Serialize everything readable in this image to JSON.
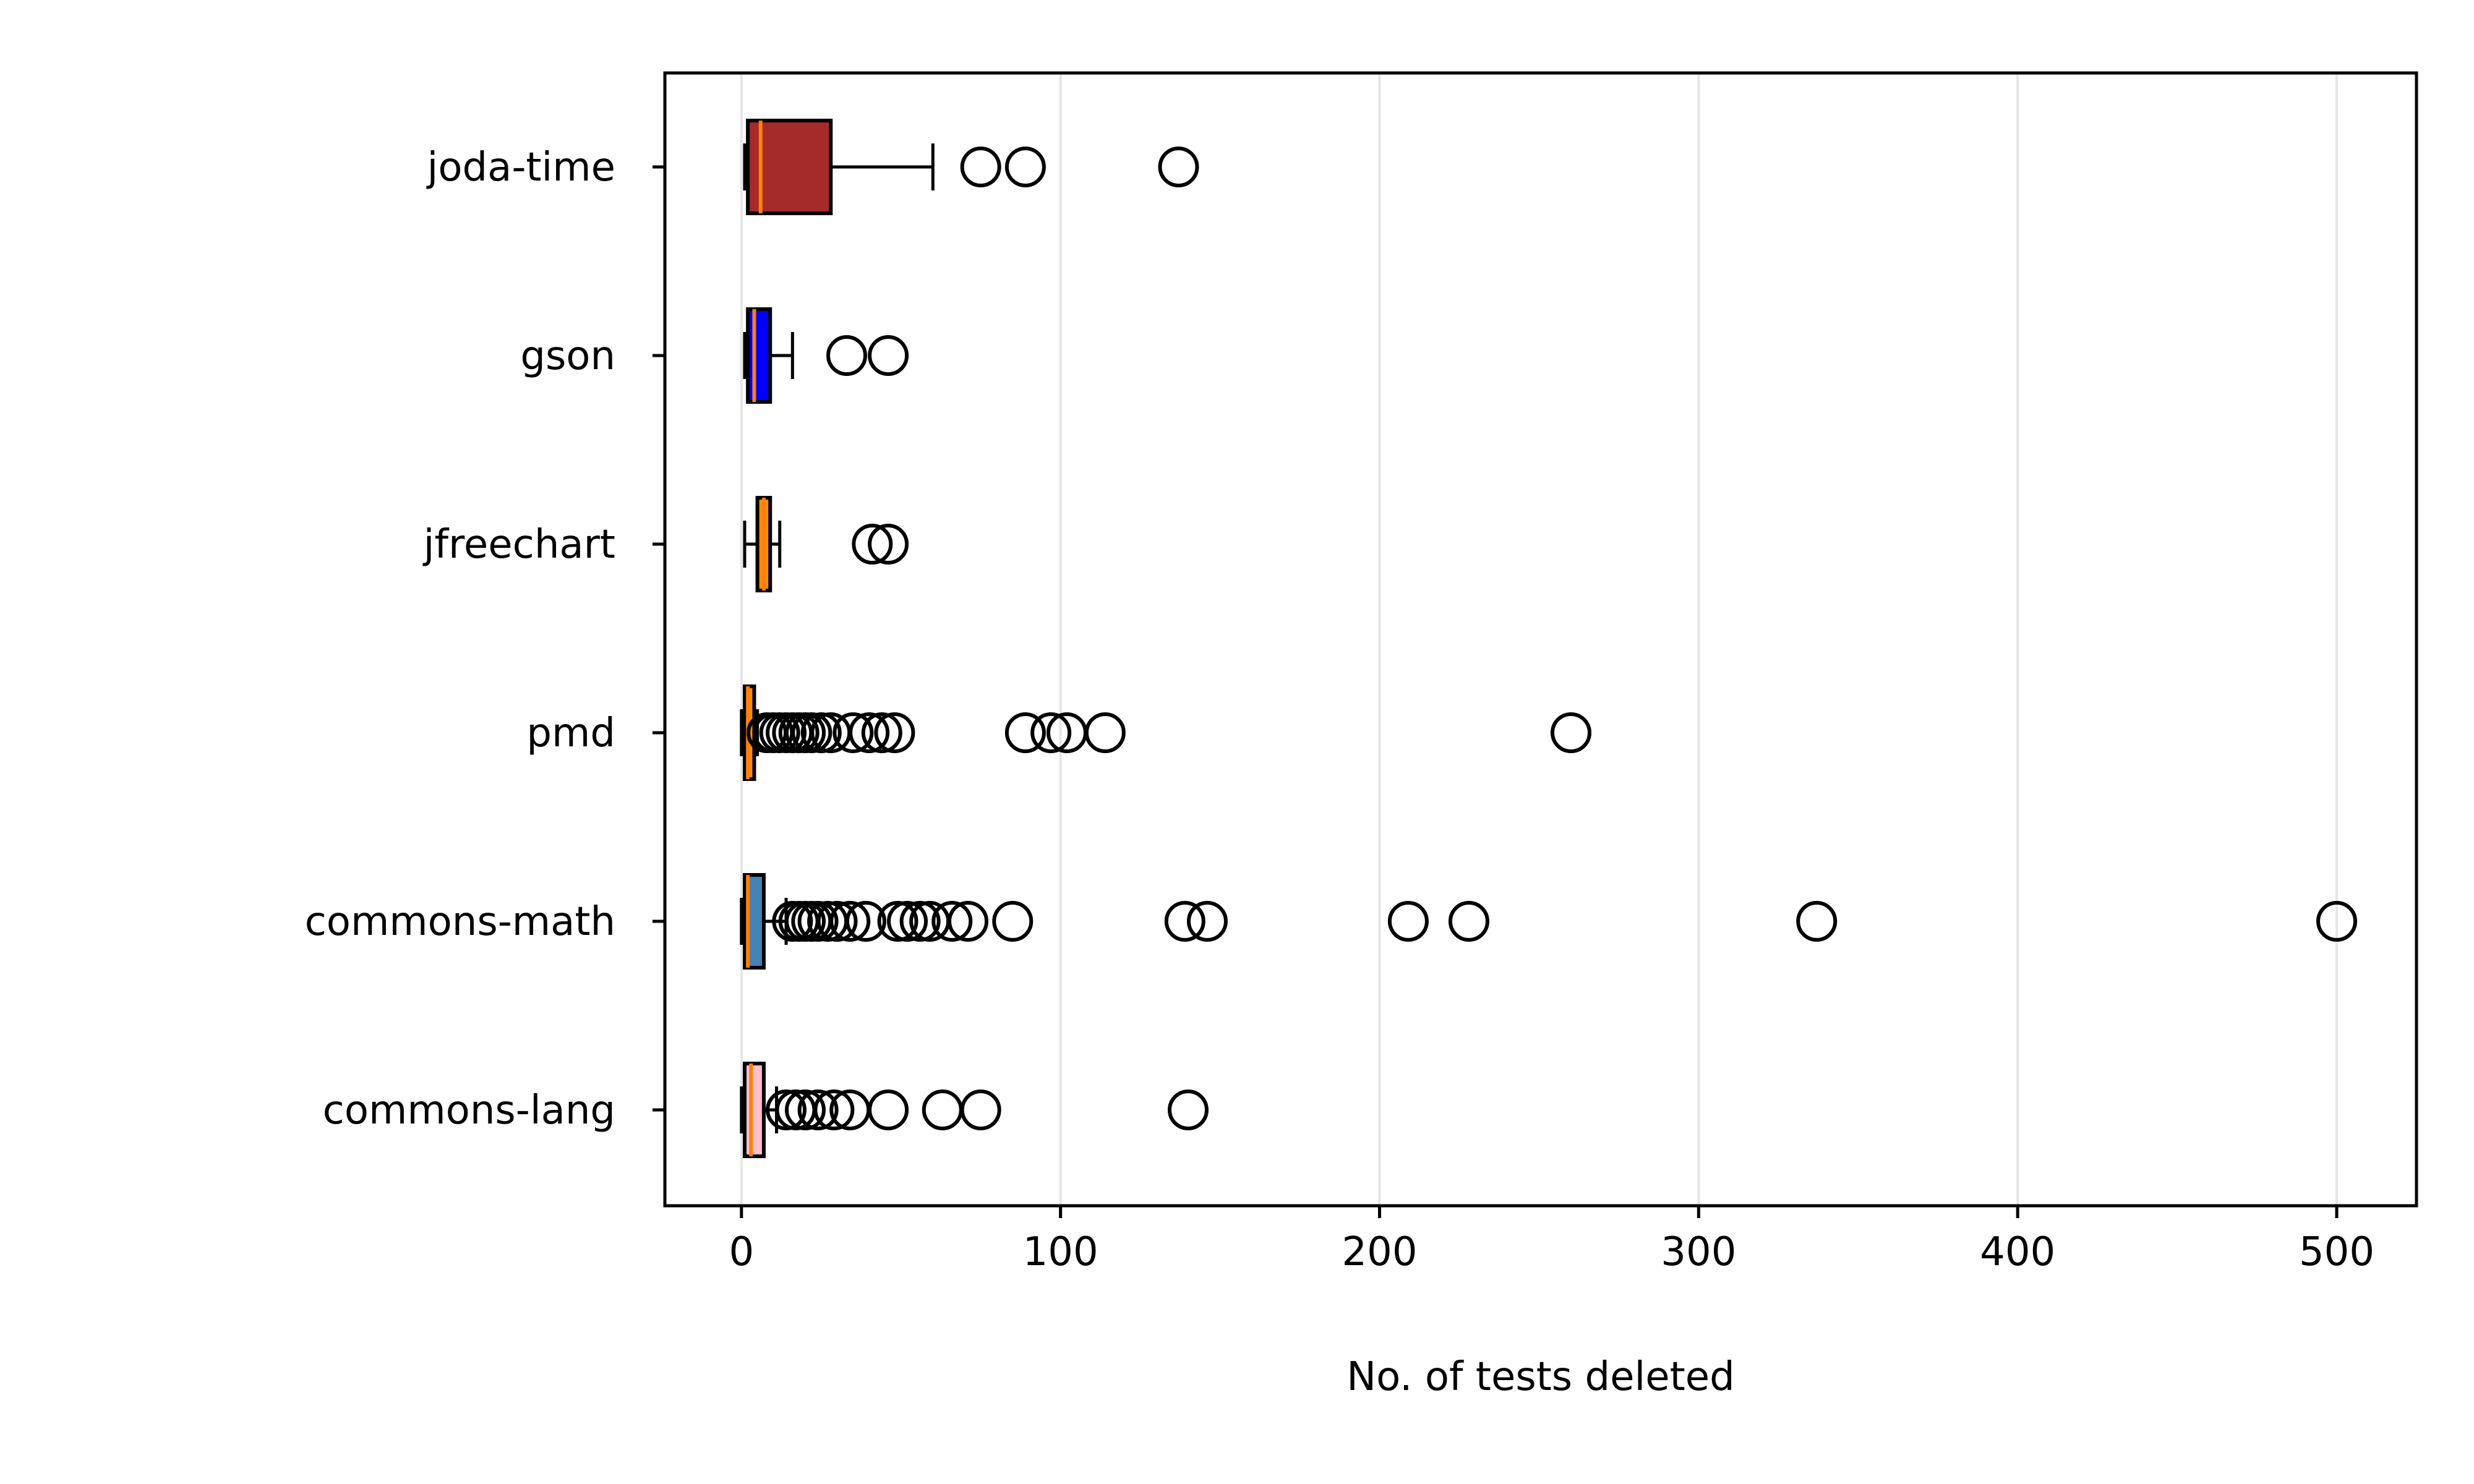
{
  "chart_data": {
    "type": "boxplot",
    "orientation": "horizontal",
    "xlabel": "No. of tests deleted",
    "ylabel": "",
    "xlim": [
      -24,
      525
    ],
    "xticks": [
      0,
      100,
      200,
      300,
      400,
      500
    ],
    "grid": "x",
    "series": [
      {
        "name": "joda-time",
        "color": "#a52a2a",
        "min": 1,
        "q1": 2,
        "median": 6,
        "q3": 28,
        "max": 60,
        "outliers": [
          75,
          89,
          137
        ]
      },
      {
        "name": "gson",
        "color": "#0000ff",
        "min": 1,
        "q1": 2,
        "median": 4,
        "q3": 9,
        "max": 16,
        "outliers": [
          33,
          46
        ]
      },
      {
        "name": "jfreechart",
        "color": "#ff8c00",
        "min": 1,
        "q1": 5,
        "median": 7,
        "q3": 9,
        "max": 12,
        "outliers": [
          41,
          46
        ]
      },
      {
        "name": "pmd",
        "color": "#ff8c00",
        "min": 0,
        "q1": 1,
        "median": 2,
        "q3": 4,
        "max": 5,
        "outliers": [
          8,
          10,
          12,
          14,
          16,
          18,
          20,
          22,
          25,
          28,
          35,
          40,
          44,
          48,
          89,
          97,
          102,
          114,
          260
        ]
      },
      {
        "name": "commons-math",
        "color": "#4682b4",
        "min": 0,
        "q1": 1,
        "median": 2,
        "q3": 7,
        "max": 14,
        "outliers": [
          16,
          18,
          20,
          22,
          24,
          27,
          30,
          34,
          39,
          49,
          52,
          56,
          59,
          66,
          71,
          85,
          139,
          146,
          209,
          228,
          337,
          500
        ]
      },
      {
        "name": "commons-lang",
        "color": "#ffc0cb",
        "min": 0,
        "q1": 1,
        "median": 3,
        "q3": 7,
        "max": 11,
        "outliers": [
          14,
          17,
          20,
          24,
          29,
          34,
          46,
          63,
          75,
          140
        ]
      }
    ]
  }
}
